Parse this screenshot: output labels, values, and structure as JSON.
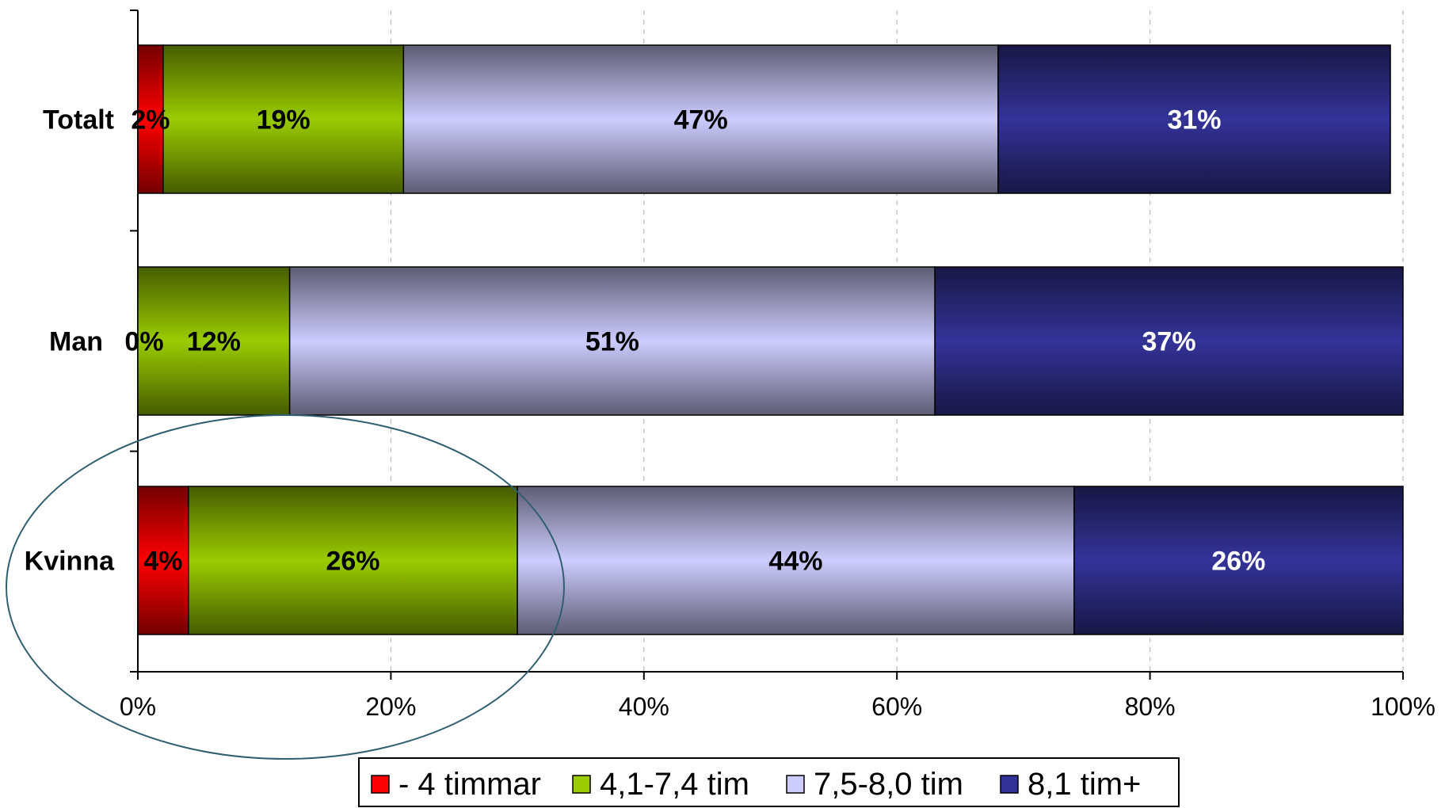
{
  "chart_data": {
    "type": "bar",
    "orientation": "horizontal",
    "stacked": "percent",
    "categories": [
      "Totalt",
      "Man",
      "Kvinna"
    ],
    "series": [
      {
        "name": "- 4 timmar",
        "values": [
          2,
          0,
          4
        ],
        "labels": [
          "2%",
          "0%",
          "4%"
        ]
      },
      {
        "name": "4,1-7,4 tim",
        "values": [
          19,
          12,
          26
        ],
        "labels": [
          "19%",
          "12%",
          "26%"
        ]
      },
      {
        "name": "7,5-8,0 tim",
        "values": [
          47,
          51,
          44
        ],
        "labels": [
          "47%",
          "51%",
          "44%"
        ]
      },
      {
        "name": "8,1 tim+",
        "values": [
          31,
          37,
          26
        ],
        "labels": [
          "31%",
          "37%",
          "26%"
        ]
      }
    ],
    "plotted_totals": [
      100,
      100,
      100
    ],
    "xlim": [
      0,
      100
    ],
    "x_ticks": [
      "0%",
      "20%",
      "40%",
      "60%",
      "80%",
      "100%"
    ],
    "grid": "vertical dashed",
    "legend_position": "bottom",
    "annotation": "ellipse around Kvinna bar",
    "colors": {
      "- 4 timmar": "#ff0000",
      "4,1-7,4 tim": "#99cc00",
      "7,5-8,0 tim": "#ccccff",
      "8,1 tim+": "#333399",
      "ellipse": "#2f5f6f"
    },
    "label_colors": [
      "#000000",
      "#000000",
      "#000000",
      "#ffffff"
    ]
  }
}
